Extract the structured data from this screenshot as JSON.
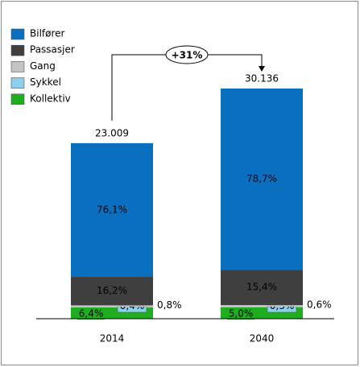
{
  "chart_data": {
    "type": "stacked_bar",
    "categories": [
      "2014",
      "2040"
    ],
    "series": [
      {
        "name": "Bilfører",
        "color": "#0a6fbf",
        "values": [
          76.1,
          78.7
        ],
        "value_labels": [
          "76,1%",
          "78,7%"
        ]
      },
      {
        "name": "Passasjer",
        "color": "#3f3f3f",
        "values": [
          16.2,
          15.4
        ],
        "value_labels": [
          "16,2%",
          "15,4%"
        ]
      },
      {
        "name": "Gang",
        "color": "#c3c3c3",
        "values": [
          0.8,
          0.6
        ],
        "value_labels": [
          "0,8%",
          "0,6%"
        ]
      },
      {
        "name": "Sykkel",
        "color": "#8ccfee",
        "values": [
          0.4,
          0.3
        ],
        "value_labels": [
          "0,4%",
          "0,3%"
        ]
      },
      {
        "name": "Kollektiv",
        "color": "#1fae1f",
        "values": [
          6.4,
          5.0
        ],
        "value_labels": [
          "6,4%",
          "5,0%"
        ]
      }
    ],
    "totals": {
      "values": [
        23009,
        30136
      ],
      "value_labels": [
        "23.009",
        "30.136"
      ]
    },
    "annotation": "+31%"
  }
}
